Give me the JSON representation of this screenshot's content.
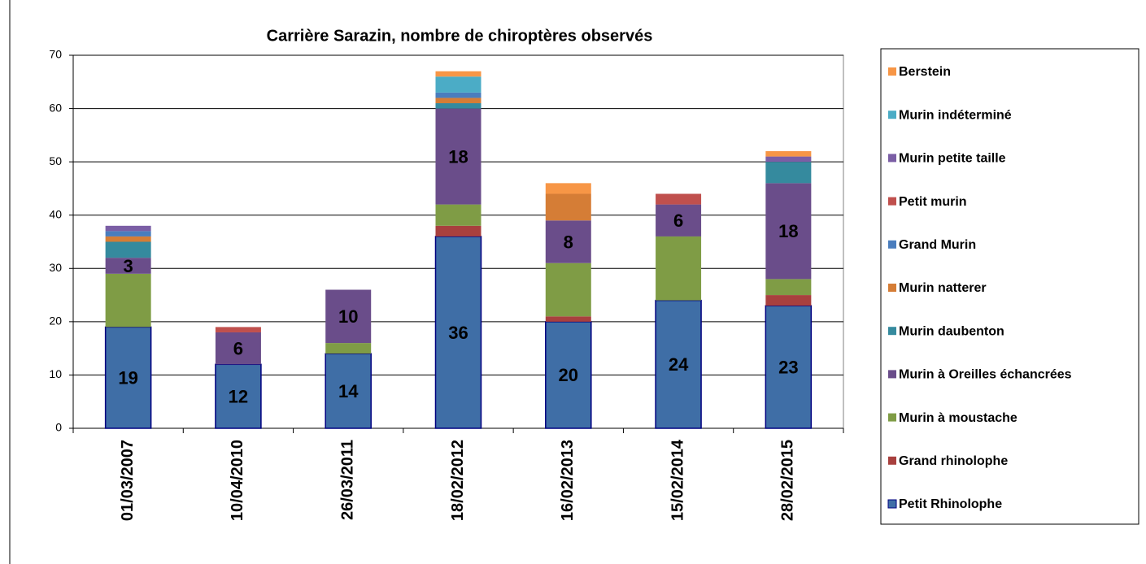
{
  "chart_data": {
    "type": "stacked_bar",
    "title": "Carrière Sarazin, nombre de chiroptères observés",
    "categories": [
      "01/03/2007",
      "10/04/2010",
      "26/03/2011",
      "18/02/2012",
      "16/02/2013",
      "15/02/2014",
      "28/02/2015"
    ],
    "series": [
      {
        "name": "Petit Rhinolophe",
        "color": "#3f6ea6",
        "labels": true,
        "values": [
          19,
          12,
          14,
          36,
          20,
          24,
          23
        ]
      },
      {
        "name": "Grand rhinolophe",
        "color": "#a8403e",
        "values": [
          0,
          0,
          0,
          2,
          1,
          0,
          2
        ]
      },
      {
        "name": "Murin à moustache",
        "color": "#7f9c45",
        "values": [
          10,
          0,
          2,
          4,
          10,
          12,
          3
        ]
      },
      {
        "name": "Murin à Oreilles échancrées",
        "color": "#6a4d8a",
        "labels": true,
        "values": [
          3,
          6,
          10,
          18,
          8,
          6,
          18
        ]
      },
      {
        "name": "Murin daubenton",
        "color": "#358a9e",
        "values": [
          3,
          0,
          0,
          1,
          0,
          0,
          4
        ]
      },
      {
        "name": "Murin natterer",
        "color": "#d57d36",
        "values": [
          1,
          0,
          0,
          1,
          5,
          0,
          0
        ]
      },
      {
        "name": "Grand Murin",
        "color": "#4a7dbd",
        "values": [
          1,
          0,
          0,
          1,
          0,
          0,
          0
        ]
      },
      {
        "name": "Petit murin",
        "color": "#c0504d",
        "values": [
          0,
          1,
          0,
          0,
          0,
          2,
          0
        ]
      },
      {
        "name": "Murin petite taille",
        "color": "#7b5ea5",
        "values": [
          1,
          0,
          0,
          0,
          0,
          0,
          1
        ]
      },
      {
        "name": "Murin indéterminé",
        "color": "#4bacc6",
        "values": [
          0,
          0,
          0,
          3,
          0,
          0,
          0
        ]
      },
      {
        "name": "Berstein",
        "color": "#f79646",
        "values": [
          0,
          0,
          0,
          1,
          2,
          0,
          1
        ]
      }
    ],
    "ylim": [
      0,
      70
    ],
    "yticks": [
      0,
      10,
      20,
      30,
      40,
      50,
      60,
      70
    ],
    "grid": true
  }
}
